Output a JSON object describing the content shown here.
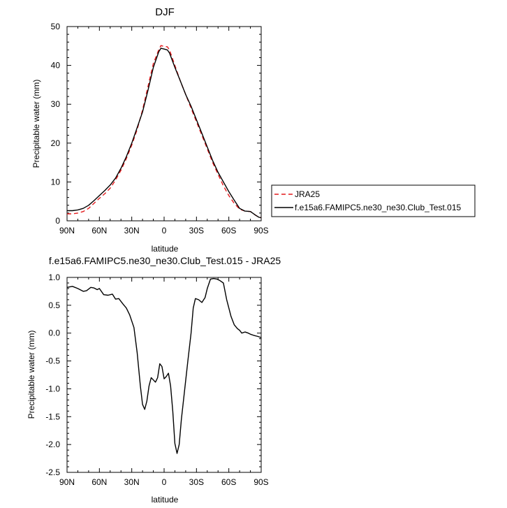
{
  "chart_data": [
    {
      "type": "line",
      "title": "DJF",
      "xlabel": "latitude",
      "ylabel": "Precipitable water (mm)",
      "xlim": [
        90,
        -90
      ],
      "ylim": [
        0,
        50
      ],
      "x_tick_values": [
        90,
        60,
        30,
        0,
        -30,
        -60,
        -90
      ],
      "x_tick_labels": [
        "90N",
        "60N",
        "30N",
        "0",
        "30S",
        "60S",
        "90S"
      ],
      "y_ticks": [
        0,
        10,
        20,
        30,
        40,
        50
      ],
      "grid": false,
      "legend_position": "right",
      "series": [
        {
          "name": "JRA25",
          "color": "#e41a1c",
          "dash": "dashed",
          "points": [
            [
              90,
              1.8
            ],
            [
              85,
              1.8
            ],
            [
              80,
              2.0
            ],
            [
              75,
              2.4
            ],
            [
              70,
              3.2
            ],
            [
              65,
              4.5
            ],
            [
              60,
              5.8
            ],
            [
              55,
              7.0
            ],
            [
              50,
              8.4
            ],
            [
              45,
              10.5
            ],
            [
              40,
              13.0
            ],
            [
              35,
              16.0
            ],
            [
              30,
              19.5
            ],
            [
              25,
              23.5
            ],
            [
              20,
              28.5
            ],
            [
              15,
              34.5
            ],
            [
              10,
              40.5
            ],
            [
              5,
              44.0
            ],
            [
              3,
              45.1
            ],
            [
              0,
              44.9
            ],
            [
              -3,
              44.8
            ],
            [
              -5,
              44.0
            ],
            [
              -10,
              40.0
            ],
            [
              -15,
              36.0
            ],
            [
              -20,
              32.5
            ],
            [
              -25,
              29.0
            ],
            [
              -30,
              25.5
            ],
            [
              -35,
              22.0
            ],
            [
              -40,
              18.5
            ],
            [
              -45,
              15.0
            ],
            [
              -50,
              12.0
            ],
            [
              -55,
              9.0
            ],
            [
              -60,
              6.5
            ],
            [
              -65,
              4.5
            ],
            [
              -70,
              3.0
            ],
            [
              -75,
              2.5
            ],
            [
              -80,
              2.4
            ],
            [
              -85,
              1.4
            ],
            [
              -88,
              0.9
            ],
            [
              -90,
              0.8
            ]
          ]
        },
        {
          "name": "f.e15a6.FAMIPC5.ne30_ne30.Club_Test.015",
          "color": "#000000",
          "dash": "solid",
          "points": [
            [
              90,
              2.6
            ],
            [
              85,
              2.6
            ],
            [
              80,
              2.8
            ],
            [
              75,
              3.2
            ],
            [
              70,
              4.0
            ],
            [
              65,
              5.2
            ],
            [
              60,
              6.5
            ],
            [
              55,
              7.8
            ],
            [
              50,
              9.2
            ],
            [
              45,
              11.0
            ],
            [
              40,
              13.5
            ],
            [
              35,
              16.5
            ],
            [
              30,
              20.0
            ],
            [
              25,
              24.0
            ],
            [
              20,
              28.0
            ],
            [
              15,
              33.5
            ],
            [
              10,
              39.5
            ],
            [
              5,
              43.5
            ],
            [
              3,
              44.4
            ],
            [
              0,
              44.2
            ],
            [
              -3,
              44.0
            ],
            [
              -5,
              43.2
            ],
            [
              -10,
              39.5
            ],
            [
              -15,
              36.0
            ],
            [
              -20,
              32.5
            ],
            [
              -25,
              29.5
            ],
            [
              -30,
              26.0
            ],
            [
              -35,
              22.5
            ],
            [
              -40,
              19.0
            ],
            [
              -45,
              15.5
            ],
            [
              -50,
              12.5
            ],
            [
              -55,
              10.0
            ],
            [
              -60,
              7.5
            ],
            [
              -65,
              5.3
            ],
            [
              -70,
              3.2
            ],
            [
              -75,
              2.5
            ],
            [
              -80,
              2.4
            ],
            [
              -85,
              1.4
            ],
            [
              -88,
              0.9
            ],
            [
              -90,
              0.8
            ]
          ]
        }
      ]
    },
    {
      "type": "line",
      "title": "f.e15a6.FAMIPC5.ne30_ne30.Club_Test.015 - JRA25",
      "xlabel": "latitude",
      "ylabel": "Precipitable water (mm)",
      "xlim": [
        90,
        -90
      ],
      "ylim": [
        -2.5,
        1.0
      ],
      "x_tick_values": [
        90,
        60,
        30,
        0,
        -30,
        -60,
        -90
      ],
      "x_tick_labels": [
        "90N",
        "60N",
        "30N",
        "0",
        "30S",
        "60S",
        "90S"
      ],
      "y_ticks": [
        -2.5,
        -2.0,
        -1.5,
        -1.0,
        -0.5,
        0.0,
        0.5,
        1.0
      ],
      "y_tick_labels": [
        "-2.5",
        "-2.0",
        "-1.5",
        "-1.0",
        "-0.5",
        "0.0",
        "0.5",
        "1.0"
      ],
      "grid": false,
      "series": [
        {
          "color": "#000000",
          "dash": "solid",
          "points": [
            [
              90,
              0.82
            ],
            [
              85,
              0.84
            ],
            [
              80,
              0.8
            ],
            [
              75,
              0.75
            ],
            [
              72,
              0.76
            ],
            [
              68,
              0.82
            ],
            [
              65,
              0.81
            ],
            [
              62,
              0.78
            ],
            [
              60,
              0.8
            ],
            [
              56,
              0.69
            ],
            [
              52,
              0.68
            ],
            [
              48,
              0.7
            ],
            [
              45,
              0.61
            ],
            [
              42,
              0.62
            ],
            [
              38,
              0.52
            ],
            [
              35,
              0.45
            ],
            [
              32,
              0.33
            ],
            [
              28,
              0.1
            ],
            [
              25,
              -0.35
            ],
            [
              22,
              -0.95
            ],
            [
              20,
              -1.28
            ],
            [
              18,
              -1.37
            ],
            [
              16,
              -1.22
            ],
            [
              14,
              -0.95
            ],
            [
              12,
              -0.8
            ],
            [
              10,
              -0.84
            ],
            [
              8,
              -0.88
            ],
            [
              6,
              -0.8
            ],
            [
              4,
              -0.55
            ],
            [
              2,
              -0.6
            ],
            [
              0,
              -0.82
            ],
            [
              -2,
              -0.78
            ],
            [
              -4,
              -0.72
            ],
            [
              -6,
              -0.95
            ],
            [
              -8,
              -1.4
            ],
            [
              -10,
              -1.98
            ],
            [
              -12,
              -2.16
            ],
            [
              -14,
              -2.0
            ],
            [
              -16,
              -1.55
            ],
            [
              -18,
              -1.2
            ],
            [
              -20,
              -0.85
            ],
            [
              -22,
              -0.5
            ],
            [
              -25,
              0.0
            ],
            [
              -27,
              0.45
            ],
            [
              -29,
              0.62
            ],
            [
              -32,
              0.6
            ],
            [
              -35,
              0.55
            ],
            [
              -38,
              0.64
            ],
            [
              -40,
              0.8
            ],
            [
              -43,
              0.97
            ],
            [
              -46,
              0.98
            ],
            [
              -49,
              0.97
            ],
            [
              -52,
              0.94
            ],
            [
              -55,
              0.9
            ],
            [
              -58,
              0.6
            ],
            [
              -60,
              0.45
            ],
            [
              -62,
              0.3
            ],
            [
              -65,
              0.15
            ],
            [
              -68,
              0.08
            ],
            [
              -70,
              0.05
            ],
            [
              -72,
              0.0
            ],
            [
              -75,
              0.02
            ],
            [
              -78,
              0.0
            ],
            [
              -80,
              -0.02
            ],
            [
              -83,
              -0.04
            ],
            [
              -87,
              -0.06
            ],
            [
              -90,
              -0.08
            ]
          ]
        }
      ]
    }
  ]
}
